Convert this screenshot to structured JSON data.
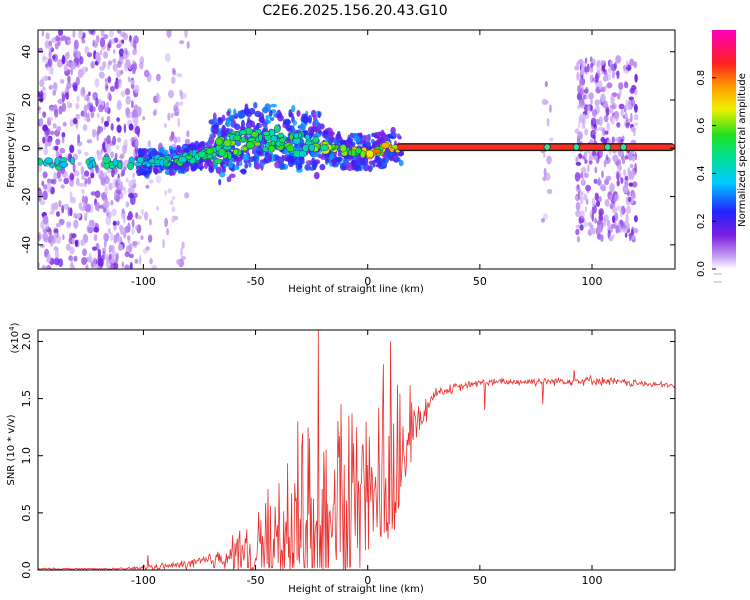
{
  "title": "C2E6.2025.156.20.43.G10",
  "colors": {
    "snr_line": "#e8302e",
    "track": "#ff2020",
    "track_outline": "#1a1a1a",
    "scatter_dark": "#7a1fd0",
    "scatter_light": "#c8a8f0"
  },
  "chart_data": [
    {
      "id": "spectrogram",
      "type": "heatmap",
      "xlabel": "Height of straight line (km)",
      "ylabel": "Frequency (Hz)",
      "xlim": [
        -147,
        137
      ],
      "ylim": [
        -50,
        49
      ],
      "x_ticks": [
        -100,
        -50,
        0,
        50,
        100
      ],
      "y_ticks": [
        -40,
        -20,
        0,
        20,
        40
      ],
      "grid": false,
      "colorbar": {
        "label": "Normalized spectral amplitude",
        "range": [
          0,
          1
        ],
        "ticks": [
          0.0,
          0.2,
          0.4,
          0.6,
          0.8
        ],
        "colormap": "rainbow (purple-blue-cyan-green-yellow-orange-red-magenta)"
      },
      "features": {
        "steady_track": {
          "x_start": 13,
          "x_end": 137,
          "frequency": 0.5,
          "amplitude": 0.85
        },
        "rising_track": [
          {
            "x": -147,
            "y": -6,
            "amp": 0.45
          },
          {
            "x": -100,
            "y": -6,
            "amp": 0.45
          },
          {
            "x": -85,
            "y": -5,
            "amp": 0.5
          },
          {
            "x": -70,
            "y": -2,
            "amp": 0.55
          },
          {
            "x": -55,
            "y": 3,
            "amp": 0.55
          },
          {
            "x": -40,
            "y": 4,
            "amp": 0.55
          },
          {
            "x": -30,
            "y": 1,
            "amp": 0.5
          },
          {
            "x": -20,
            "y": 0.5,
            "amp": 0.6
          },
          {
            "x": -10,
            "y": -1,
            "amp": 0.65
          },
          {
            "x": 0,
            "y": -2,
            "amp": 0.7
          },
          {
            "x": 10,
            "y": 0.5,
            "amp": 0.8
          }
        ],
        "noise_bands": [
          {
            "x_start": -147,
            "x_end": -102,
            "y_min": -50,
            "y_max": 49,
            "density": "high"
          },
          {
            "x_start": -102,
            "x_end": -80,
            "y_min": -50,
            "y_max": 49,
            "density": "low"
          },
          {
            "x_start": 78,
            "x_end": 82,
            "y_min": -30,
            "y_max": 30,
            "density": "low"
          },
          {
            "x_start": 93,
            "x_end": 120,
            "y_min": -38,
            "y_max": 38,
            "density": "high"
          }
        ]
      }
    },
    {
      "id": "snr",
      "type": "line",
      "xlabel": "Height of straight line (km)",
      "ylabel": "SNR (10 * v/v)",
      "multiplier_label": "(x10",
      "multiplier_exp": "4",
      "multiplier_close": ")",
      "xlim": [
        -147,
        137
      ],
      "ylim": [
        0,
        2.1
      ],
      "x_ticks": [
        -100,
        -50,
        0,
        50,
        100
      ],
      "y_ticks": [
        0.0,
        0.5,
        1.0,
        1.5,
        2.0
      ],
      "grid": false,
      "envelope": [
        {
          "x": -147,
          "base": 0.01,
          "amp": 0.01
        },
        {
          "x": -110,
          "base": 0.01,
          "amp": 0.01
        },
        {
          "x": -100,
          "base": 0.02,
          "amp": 0.03
        },
        {
          "x": -85,
          "base": 0.04,
          "amp": 0.04
        },
        {
          "x": -70,
          "base": 0.08,
          "amp": 0.1
        },
        {
          "x": -60,
          "base": 0.15,
          "amp": 0.2
        },
        {
          "x": -50,
          "base": 0.2,
          "amp": 0.35
        },
        {
          "x": -40,
          "base": 0.25,
          "amp": 0.5
        },
        {
          "x": -30,
          "base": 0.35,
          "amp": 0.6
        },
        {
          "x": -20,
          "base": 0.4,
          "amp": 0.7
        },
        {
          "x": -10,
          "base": 0.45,
          "amp": 0.7
        },
        {
          "x": 0,
          "base": 0.6,
          "amp": 0.6
        },
        {
          "x": 10,
          "base": 0.8,
          "amp": 0.6
        },
        {
          "x": 20,
          "base": 1.2,
          "amp": 0.3
        },
        {
          "x": 30,
          "base": 1.55,
          "amp": 0.06
        },
        {
          "x": 50,
          "base": 1.64,
          "amp": 0.04
        },
        {
          "x": 100,
          "base": 1.66,
          "amp": 0.05
        },
        {
          "x": 137,
          "base": 1.61,
          "amp": 0.03
        }
      ],
      "peaks": [
        {
          "x": -98,
          "y": 0.13
        },
        {
          "x": -22,
          "y": 2.1
        },
        {
          "x": -31,
          "y": 1.3
        },
        {
          "x": -26,
          "y": 1.15
        },
        {
          "x": -12,
          "y": 1.45
        },
        {
          "x": -5,
          "y": 1.25
        },
        {
          "x": 7,
          "y": 1.8
        },
        {
          "x": 10,
          "y": 2.0
        },
        {
          "x": 12,
          "y": 0.35
        },
        {
          "x": 52,
          "y": 1.4
        },
        {
          "x": 78,
          "y": 1.45
        },
        {
          "x": 92,
          "y": 1.75
        }
      ]
    }
  ]
}
